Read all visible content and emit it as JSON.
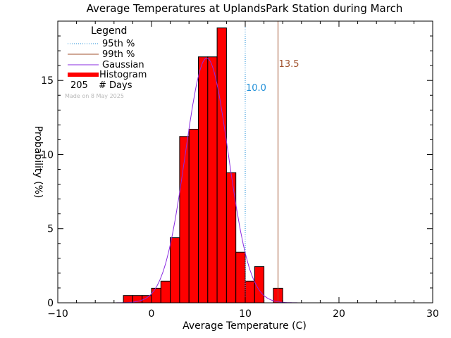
{
  "chart_data": {
    "type": "bar",
    "title": "Average Temperatures at UplandsPark Station during March",
    "xlabel": "Average Temperature (C)",
    "ylabel": "Probability (%)",
    "xlim": [
      -10,
      30
    ],
    "ylim": [
      0,
      19
    ],
    "x_ticks": [
      -10,
      0,
      10,
      20,
      30
    ],
    "y_ticks": [
      0,
      5,
      10,
      15
    ],
    "grid": false,
    "legend_position": "top-left",
    "legend": {
      "title": "Legend",
      "entries": [
        {
          "label": "95th %",
          "style": "dotted",
          "color": "#1f8fd8"
        },
        {
          "label": "99th %",
          "style": "solid",
          "color": "#a0522d"
        },
        {
          "label": "Gaussian",
          "style": "solid",
          "color": "#8a2be2"
        },
        {
          "label": "Histogram",
          "style": "thick",
          "color": "#ff0000"
        }
      ],
      "count_value": "205",
      "count_label": "# Days",
      "made_on": "Made on 8 May 2025"
    },
    "histogram": {
      "bin_width": 1,
      "bins": [
        {
          "x": -3,
          "p": 0.49
        },
        {
          "x": -2,
          "p": 0.49
        },
        {
          "x": -1,
          "p": 0.49
        },
        {
          "x": 0,
          "p": 0.98
        },
        {
          "x": 1,
          "p": 1.46
        },
        {
          "x": 2,
          "p": 4.39
        },
        {
          "x": 3,
          "p": 11.22
        },
        {
          "x": 4,
          "p": 11.71
        },
        {
          "x": 5,
          "p": 16.59
        },
        {
          "x": 6,
          "p": 16.59
        },
        {
          "x": 7,
          "p": 18.54
        },
        {
          "x": 8,
          "p": 8.78
        },
        {
          "x": 9,
          "p": 3.41
        },
        {
          "x": 10,
          "p": 1.46
        },
        {
          "x": 11,
          "p": 2.44
        },
        {
          "x": 12,
          "p": 0
        },
        {
          "x": 13,
          "p": 0.98
        }
      ],
      "color": "#ff0000"
    },
    "gaussian": {
      "mean": 5.9,
      "sd": 2.3,
      "peak": 16.5,
      "color": "#8a2be2"
    },
    "percentiles": [
      {
        "name": "95th %",
        "value": 10.0,
        "label": "10.0",
        "color": "#1f8fd8",
        "style": "dotted"
      },
      {
        "name": "99th %",
        "value": 13.5,
        "label": "13.5",
        "color": "#a0522d",
        "style": "solid"
      }
    ]
  }
}
